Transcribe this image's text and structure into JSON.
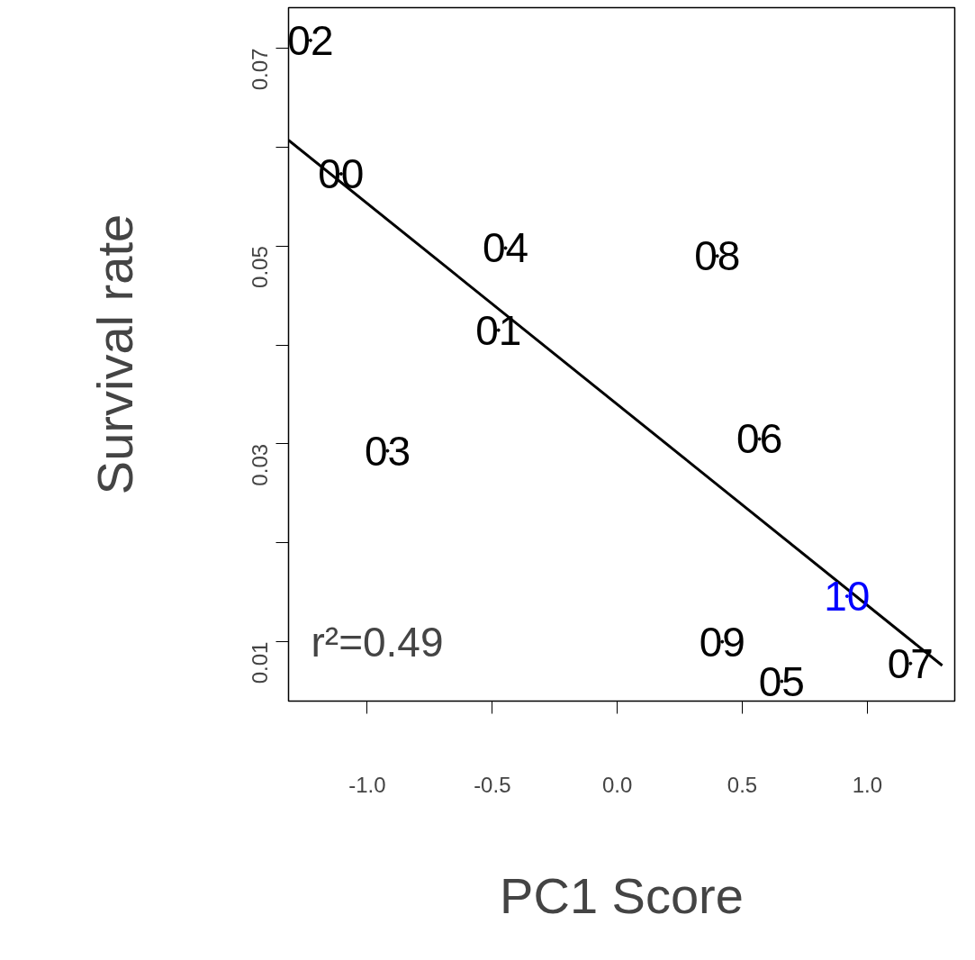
{
  "chart_data": {
    "type": "scatter",
    "xlabel": "PC1 Score",
    "ylabel": "Survival rate",
    "xlim": [
      -1.315,
      1.35
    ],
    "ylim": [
      0.004,
      0.0741
    ],
    "xticks": [
      {
        "value": -1.0,
        "label": "-1.0"
      },
      {
        "value": -0.5,
        "label": "-0.5"
      },
      {
        "value": 0.0,
        "label": "0.0"
      },
      {
        "value": 0.5,
        "label": "0.5"
      },
      {
        "value": 1.0,
        "label": "1.0"
      }
    ],
    "yticks": [
      0.01,
      {
        "value": 0.02,
        "label": null
      },
      0.03,
      {
        "value": 0.04,
        "label": null
      },
      0.05,
      {
        "value": 0.06,
        "label": null
      },
      0.07
    ],
    "marker": "none",
    "grid": false,
    "annotations": [
      "r²=0.49",
      {
        "text": "02",
        "x": -1.227,
        "y": 0.0708
      },
      {
        "text": "00",
        "x": -1.105,
        "y": 0.0573
      },
      {
        "text": "04",
        "x": -0.447,
        "y": 0.0498
      },
      {
        "text": "08",
        "x": 0.4,
        "y": 0.049
      },
      {
        "text": "01",
        "x": -0.475,
        "y": 0.0415
      },
      {
        "text": "03",
        "x": -0.919,
        "y": 0.0293
      },
      {
        "text": "06",
        "x": 0.569,
        "y": 0.0305
      },
      {
        "text": "09",
        "x": 0.42,
        "y": 0.01
      },
      {
        "text": "05",
        "x": 0.658,
        "y": 0.006
      },
      {
        "text": "07",
        "x": 1.173,
        "y": 0.0078
      },
      {
        "text": "10",
        "x": 0.919,
        "y": 0.0146
      }
    ],
    "series": [
      {
        "color": "#000000",
        "x": [
          -1.227,
          -1.105,
          -0.447,
          0.4,
          -0.475,
          -0.919,
          0.569,
          0.42,
          0.658,
          1.173
        ],
        "values": [
          0.0708,
          0.0573,
          0.0498,
          0.049,
          0.0415,
          0.0293,
          0.0305,
          0.01,
          0.006,
          0.0078
        ]
      },
      {
        "color": "#0000ff",
        "x": [
          0.919
        ],
        "values": [
          0.0146
        ]
      },
      {
        "type": "line",
        "color": "#000000",
        "x": [
          -1.315,
          1.3
        ],
        "values": [
          0.0607,
          0.0076
        ]
      }
    ]
  }
}
